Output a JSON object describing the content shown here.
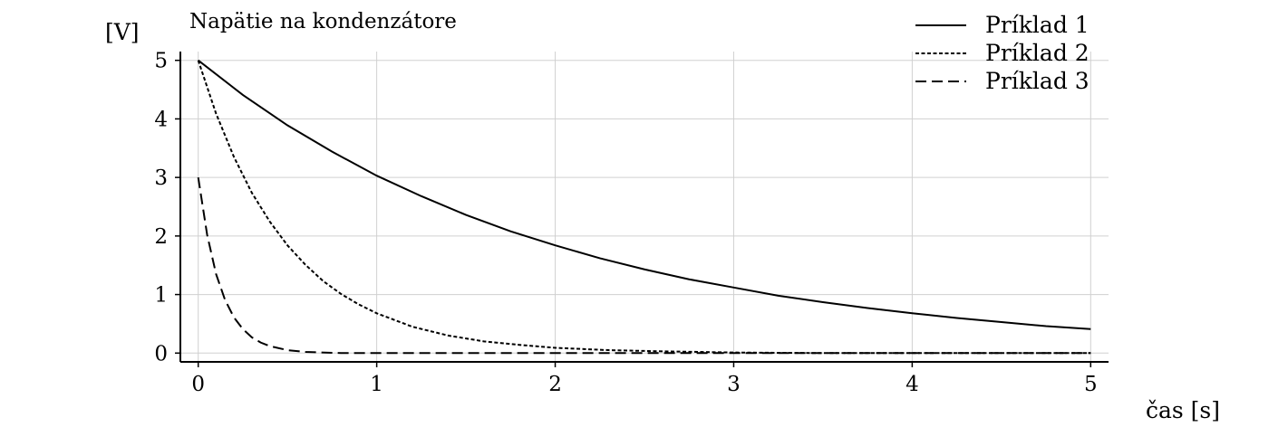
{
  "chart_data": {
    "type": "line",
    "title": "Napätie na kondenzátore",
    "xlabel": "čas [s]",
    "ylabel": "[V]",
    "xlim": [
      -0.1,
      5.1
    ],
    "ylim": [
      -0.15,
      5.15
    ],
    "x_ticks": [
      0,
      1,
      2,
      3,
      4,
      5
    ],
    "y_ticks": [
      0,
      1,
      2,
      3,
      4,
      5
    ],
    "grid": true,
    "legend_position": "top-right",
    "series": [
      {
        "name": "Príklad 1",
        "line_style": "solid",
        "color": "#000000",
        "x": [
          0,
          0.25,
          0.5,
          0.75,
          1,
          1.25,
          1.5,
          1.75,
          2,
          2.25,
          2.5,
          2.75,
          3,
          3.25,
          3.5,
          3.75,
          4,
          4.25,
          4.5,
          4.75,
          5
        ],
        "y": [
          5.0,
          4.41,
          3.89,
          3.44,
          3.03,
          2.68,
          2.36,
          2.08,
          1.84,
          1.62,
          1.43,
          1.26,
          1.12,
          0.98,
          0.87,
          0.77,
          0.68,
          0.6,
          0.53,
          0.46,
          0.41
        ]
      },
      {
        "name": "Príklad 2",
        "line_style": "dotted",
        "color": "#000000",
        "x": [
          0,
          0.1,
          0.2,
          0.3,
          0.4,
          0.5,
          0.6,
          0.7,
          0.8,
          0.9,
          1.0,
          1.2,
          1.4,
          1.6,
          1.8,
          2.0,
          2.3,
          2.6,
          3.0,
          3.5,
          4.0,
          4.5,
          5.0
        ],
        "y": [
          5.0,
          4.09,
          3.35,
          2.74,
          2.25,
          1.84,
          1.51,
          1.23,
          1.01,
          0.83,
          0.68,
          0.45,
          0.3,
          0.2,
          0.14,
          0.09,
          0.05,
          0.03,
          0.01,
          0.0,
          0.0,
          0.0,
          0.0
        ]
      },
      {
        "name": "Príklad 3",
        "line_style": "dashed",
        "color": "#000000",
        "x": [
          0,
          0.05,
          0.1,
          0.15,
          0.2,
          0.25,
          0.3,
          0.35,
          0.4,
          0.5,
          0.6,
          0.8,
          1.0,
          2.0,
          3.0,
          4.0,
          5.0
        ],
        "y": [
          3.0,
          2.02,
          1.35,
          0.91,
          0.61,
          0.41,
          0.27,
          0.18,
          0.12,
          0.05,
          0.02,
          0.0,
          0.0,
          0.0,
          0.0,
          0.0,
          0.0
        ]
      }
    ]
  }
}
